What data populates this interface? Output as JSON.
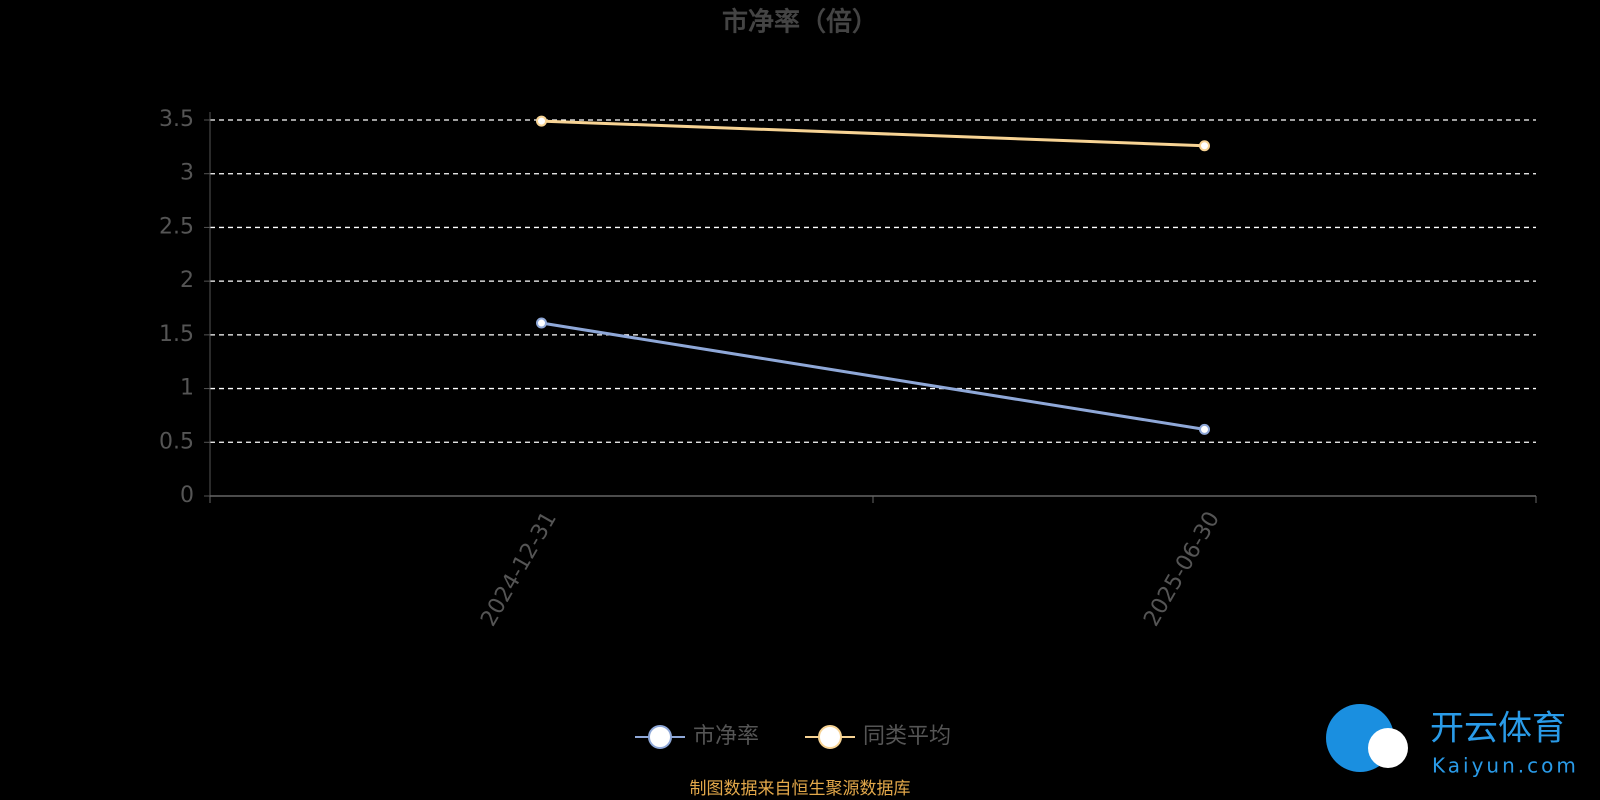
{
  "chart_data": {
    "type": "line",
    "title": "市净率（倍）",
    "categories": [
      "2024-12-31",
      "2025-06-30"
    ],
    "series": [
      {
        "name": "市净率",
        "color": "#8fa8d8",
        "values": [
          1.61,
          0.62
        ]
      },
      {
        "name": "同类平均",
        "color": "#f7d394",
        "values": [
          3.49,
          3.26
        ]
      }
    ],
    "ylim": [
      0,
      3.5
    ],
    "yticks": [
      0,
      0.5,
      1,
      1.5,
      2,
      2.5,
      3,
      3.5
    ],
    "grid": true
  },
  "source": "制图数据来自恒生聚源数据库",
  "watermark": {
    "brand": "开云体育",
    "site": "Kaiyun.com"
  }
}
